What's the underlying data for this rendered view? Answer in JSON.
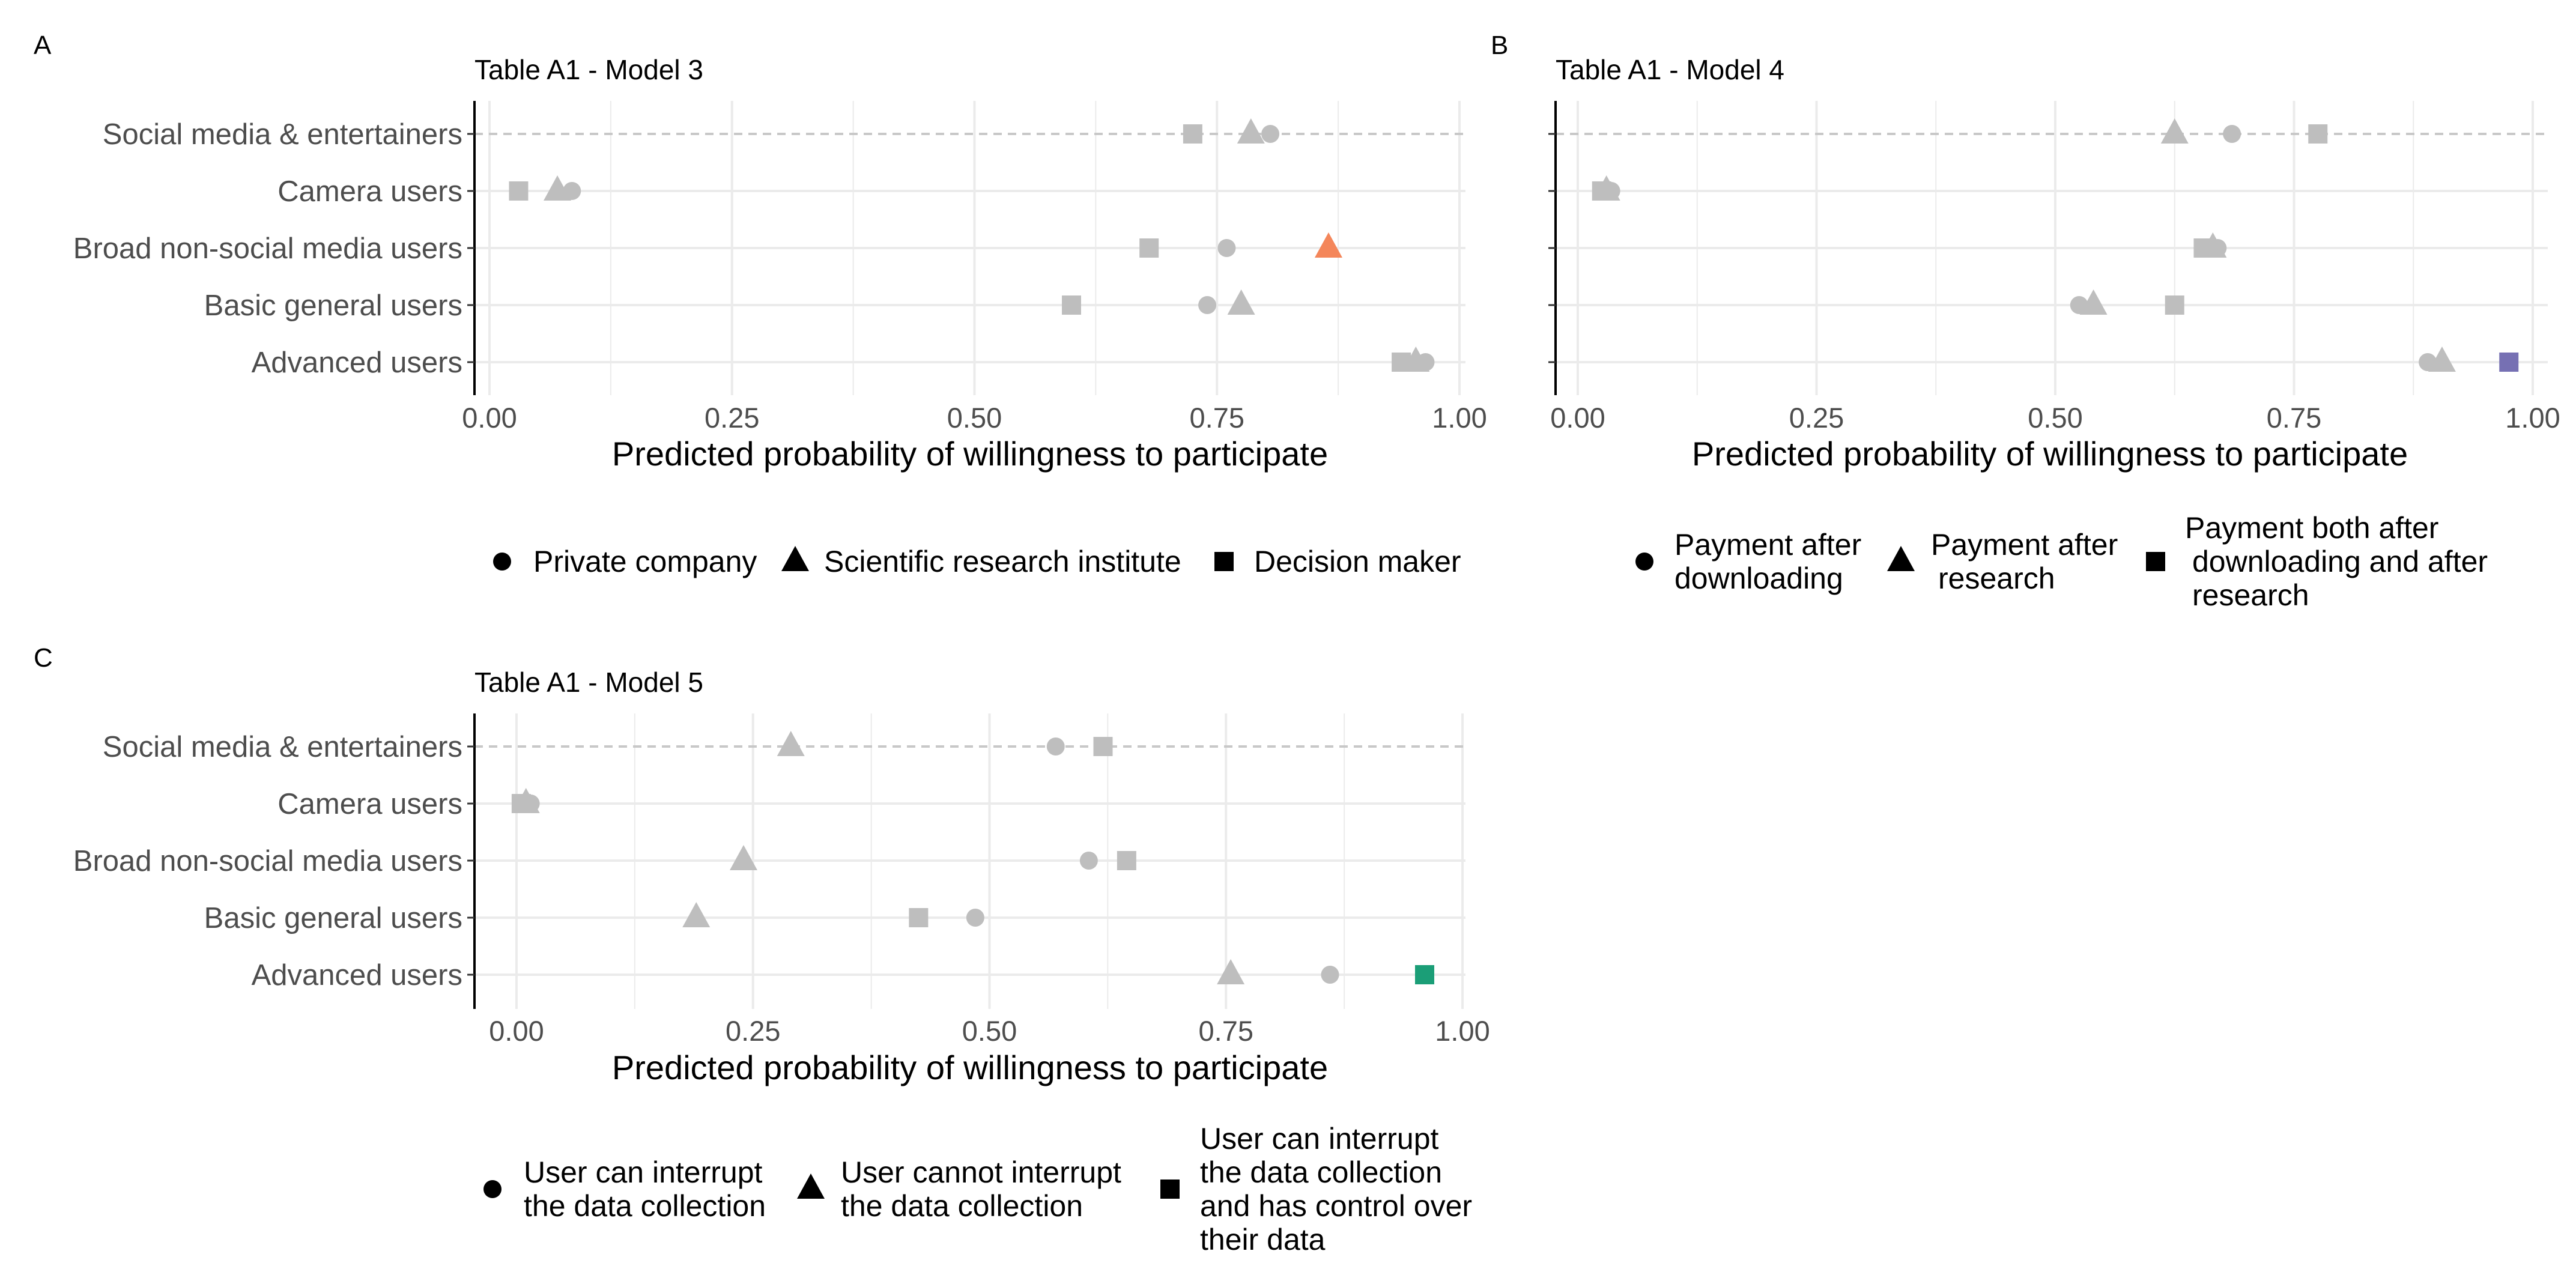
{
  "palette": {
    "neutral": "#bebebe",
    "model3_highlight": "#f4865a",
    "model4_highlight": "#7670b3",
    "model5_highlight": "#1b9e77",
    "grid": "#ebebeb",
    "reference_line": "#c8c8c8",
    "axis": "#000000"
  },
  "chart_data": [
    {
      "type": "scatter",
      "panel": "A",
      "title": "Table A1 - Model 3",
      "xlabel": "Predicted probability of willingness to participate",
      "ylabel": "",
      "xlim": [
        -0.02,
        1.0
      ],
      "xticks": [
        0,
        0.25,
        0.5,
        0.75,
        1
      ],
      "tick_labels": [
        "0.00",
        "0.25",
        "0.50",
        "0.75",
        "1.00"
      ],
      "reference_category": "Social media & entertainers",
      "categories": [
        "Social media & entertainers",
        "Camera users",
        "Broad non-social media users",
        "Basic general users",
        "Advanced users"
      ],
      "series": [
        {
          "name": "Private company",
          "shape": "circle",
          "values": [
            0.805,
            0.085,
            0.76,
            0.74,
            0.965
          ]
        },
        {
          "name": "Scientific research institute",
          "shape": "triangle",
          "values": [
            0.785,
            0.07,
            0.865,
            0.775,
            0.955
          ]
        },
        {
          "name": "Decision maker",
          "shape": "square",
          "values": [
            0.725,
            0.03,
            0.68,
            0.6,
            0.94
          ]
        }
      ],
      "highlight": {
        "series": "Scientific research institute",
        "category": "Broad non-social media users",
        "color": "#f4865a"
      },
      "legend": [
        {
          "label": "Private company",
          "shape": "circle"
        },
        {
          "label": "Scientific research institute",
          "shape": "triangle"
        },
        {
          "label": "Decision maker",
          "shape": "square"
        }
      ],
      "legend_position": "bottom"
    },
    {
      "type": "scatter",
      "panel": "B",
      "title": "Table A1 - Model 4",
      "xlabel": "Predicted probability of willingness to participate",
      "ylabel": "",
      "xlim": [
        -0.02,
        1.0
      ],
      "xticks": [
        0,
        0.25,
        0.5,
        0.75,
        1
      ],
      "tick_labels": [
        "0.00",
        "0.25",
        "0.50",
        "0.75",
        "1.00"
      ],
      "reference_category": "Social media & entertainers",
      "categories": [
        "Social media & entertainers",
        "Camera users",
        "Broad non-social media users",
        "Basic general users",
        "Advanced users"
      ],
      "series": [
        {
          "name": "Payment after downloading",
          "shape": "circle",
          "values": [
            0.685,
            0.035,
            0.67,
            0.525,
            0.89
          ]
        },
        {
          "name": "Payment after research",
          "shape": "triangle",
          "values": [
            0.625,
            0.03,
            0.665,
            0.54,
            0.905
          ]
        },
        {
          "name": "Payment both after downloading and after research",
          "shape": "square",
          "values": [
            0.775,
            0.025,
            0.655,
            0.625,
            0.975
          ]
        }
      ],
      "highlight": {
        "series": "Payment both after downloading and after research",
        "category": "Advanced users",
        "color": "#7670b3"
      },
      "legend": [
        {
          "label": "Payment after\ndownloading",
          "shape": "circle"
        },
        {
          "label": "Payment after\nresearch",
          "shape": "triangle"
        },
        {
          "label": "Payment both after\ndownloading and after\nresearch",
          "shape": "square"
        }
      ],
      "legend_position": "bottom"
    },
    {
      "type": "scatter",
      "panel": "C",
      "title": "Table A1 - Model 5",
      "xlabel": "Predicted probability of willingness to participate",
      "ylabel": "",
      "xlim": [
        -0.04,
        1.0
      ],
      "xticks": [
        0,
        0.25,
        0.5,
        0.75,
        1
      ],
      "tick_labels": [
        "0.00",
        "0.25",
        "0.50",
        "0.75",
        "1.00"
      ],
      "reference_category": "Social media & entertainers",
      "categories": [
        "Social media & entertainers",
        "Camera users",
        "Broad non-social media users",
        "Basic general users",
        "Advanced users"
      ],
      "series": [
        {
          "name": "User can interrupt the data collection",
          "shape": "circle",
          "values": [
            0.57,
            0.015,
            0.605,
            0.485,
            0.86
          ]
        },
        {
          "name": "User cannot interrupt the data collection",
          "shape": "triangle",
          "values": [
            0.29,
            0.01,
            0.24,
            0.19,
            0.755
          ]
        },
        {
          "name": "User can interrupt the data collection and has control over their data",
          "shape": "square",
          "values": [
            0.62,
            0.005,
            0.645,
            0.425,
            0.96
          ]
        }
      ],
      "highlight": {
        "series": "User can interrupt the data collection and has control over their data",
        "category": "Advanced users",
        "color": "#1b9e77"
      },
      "legend": [
        {
          "label": "User can interrupt\nthe data collection",
          "shape": "circle"
        },
        {
          "label": "User cannot interrupt\nthe data collection",
          "shape": "triangle"
        },
        {
          "label": "User can interrupt\nthe data collection\nand has control over\ntheir data",
          "shape": "square"
        }
      ],
      "legend_position": "bottom"
    }
  ]
}
